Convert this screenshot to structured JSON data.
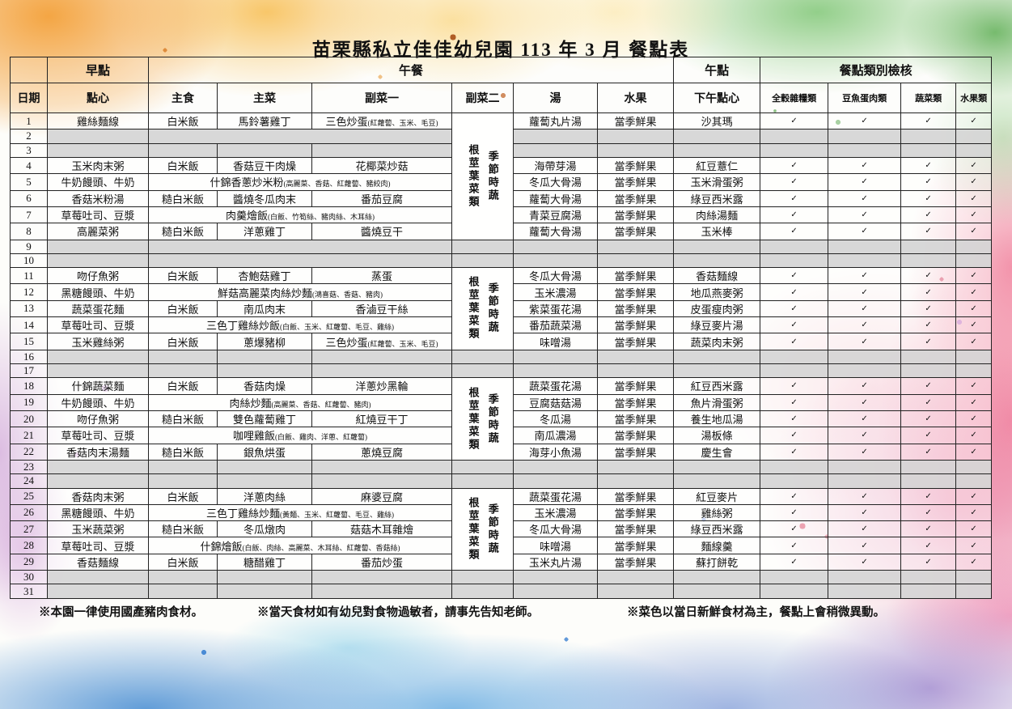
{
  "title": "苗栗縣私立佳佳幼兒園  113 年 3 月 餐點表",
  "header": {
    "groups": [
      {
        "label": "",
        "span": 1
      },
      {
        "label": "早點",
        "span": 1
      },
      {
        "label": "午餐",
        "span": 6
      },
      {
        "label": "午點",
        "span": 1
      },
      {
        "label": "餐點類別檢核",
        "span": 4
      }
    ],
    "columns": [
      "日期",
      "點心",
      "主食",
      "主菜",
      "副菜一",
      "副菜二",
      "湯",
      "水果",
      "下午點心",
      "全穀雜糧類",
      "豆魚蛋肉類",
      "蔬菜類",
      "水果類"
    ]
  },
  "check_mark": "✓",
  "side2_blocks": [
    {
      "start": 1,
      "end": 8,
      "lines": [
        "根莖葉菜類",
        "季節時蔬"
      ]
    },
    {
      "start": 11,
      "end": 15,
      "lines": [
        "根莖葉菜類",
        "季節時蔬"
      ]
    },
    {
      "start": 18,
      "end": 22,
      "lines": [
        "根莖葉菜類",
        "季節時蔬"
      ]
    },
    {
      "start": 25,
      "end": 29,
      "lines": [
        "根莖葉菜類",
        "季節時蔬"
      ]
    }
  ],
  "rows": [
    {
      "day": 1,
      "type": "meal",
      "snack": "雞絲麵線",
      "staple": "白米飯",
      "main": "馬鈴薯雞丁",
      "side1": "三色炒蛋(紅蘿蔔、玉米、毛豆)",
      "soup": "蘿蔔丸片湯",
      "fruit": "當季鮮果",
      "pm": "沙其瑪",
      "checks": [
        true,
        true,
        true,
        true
      ]
    },
    {
      "day": 2,
      "type": "empty",
      "lunch_merged": true
    },
    {
      "day": 3,
      "type": "empty"
    },
    {
      "day": 4,
      "type": "meal",
      "snack": "玉米肉末粥",
      "staple": "白米飯",
      "main": "香菇豆干肉燥",
      "side1": "花椰菜炒菇",
      "soup": "海帶芽湯",
      "fruit": "當季鮮果",
      "pm": "紅豆薏仁",
      "checks": [
        true,
        true,
        true,
        true
      ]
    },
    {
      "day": 5,
      "type": "meal_merged",
      "snack": "牛奶饅頭、牛奶",
      "lunch": "什錦香蔥炒米粉(高麗菜、香菇、紅蘿蔔、豬絞肉)",
      "soup": "冬瓜大骨湯",
      "fruit": "當季鮮果",
      "pm": "玉米滑蛋粥",
      "checks": [
        true,
        true,
        true,
        true
      ]
    },
    {
      "day": 6,
      "type": "meal",
      "snack": "香菇米粉湯",
      "staple": "糙白米飯",
      "main": "醬燒冬瓜肉末",
      "side1": "番茄豆腐",
      "soup": "蘿蔔大骨湯",
      "fruit": "當季鮮果",
      "pm": "綠豆西米露",
      "checks": [
        true,
        true,
        true,
        true
      ]
    },
    {
      "day": 7,
      "type": "meal_merged",
      "snack": "草莓吐司、豆漿",
      "lunch": "肉羹燴飯(白飯、竹筍絲、豬肉絲、木耳絲)",
      "soup": "青菜豆腐湯",
      "fruit": "當季鮮果",
      "pm": "肉絲湯麵",
      "checks": [
        true,
        true,
        true,
        true
      ]
    },
    {
      "day": 8,
      "type": "meal",
      "snack": "高麗菜粥",
      "staple": "糙白米飯",
      "main": "洋蔥雞丁",
      "side1": "醬燒豆干",
      "soup": "蘿蔔大骨湯",
      "fruit": "當季鮮果",
      "pm": "玉米棒",
      "checks": [
        true,
        true,
        true,
        true
      ]
    },
    {
      "day": 9,
      "type": "empty",
      "lunch_merged": true
    },
    {
      "day": 10,
      "type": "empty",
      "lunch_merged": true
    },
    {
      "day": 11,
      "type": "meal",
      "snack": "吻仔魚粥",
      "staple": "白米飯",
      "main": "杏鮑菇雞丁",
      "side1": "蒸蛋",
      "soup": "冬瓜大骨湯",
      "fruit": "當季鮮果",
      "pm": "香菇麵線",
      "checks": [
        true,
        true,
        true,
        true
      ]
    },
    {
      "day": 12,
      "type": "meal_merged",
      "snack": "黑糖饅頭、牛奶",
      "lunch": "鮮菇高麗菜肉絲炒麵(鴻喜菇、香菇、豬肉)",
      "soup": "玉米濃湯",
      "fruit": "當季鮮果",
      "pm": "地瓜燕麥粥",
      "checks": [
        true,
        true,
        true,
        true
      ]
    },
    {
      "day": 13,
      "type": "meal",
      "snack": "蔬菜蛋花麵",
      "staple": "白米飯",
      "main": "南瓜肉末",
      "side1": "香滷豆干絲",
      "soup": "紫菜蛋花湯",
      "fruit": "當季鮮果",
      "pm": "皮蛋瘦肉粥",
      "checks": [
        true,
        true,
        true,
        true
      ]
    },
    {
      "day": 14,
      "type": "meal_merged",
      "snack": "草莓吐司、豆漿",
      "lunch": "三色丁雞絲炒飯(白飯、玉米、紅蘿蔔、毛豆、雞絲)",
      "soup": "番茄蔬菜湯",
      "fruit": "當季鮮果",
      "pm": "綠豆麥片湯",
      "checks": [
        true,
        true,
        true,
        true
      ]
    },
    {
      "day": 15,
      "type": "meal",
      "snack": "玉米雞絲粥",
      "staple": "白米飯",
      "main": "蔥爆豬柳",
      "side1": "三色炒蛋(紅蘿蔔、玉米、毛豆)",
      "soup": "味噌湯",
      "fruit": "當季鮮果",
      "pm": "蔬菜肉末粥",
      "checks": [
        true,
        true,
        true,
        true
      ]
    },
    {
      "day": 16,
      "type": "empty"
    },
    {
      "day": 17,
      "type": "empty"
    },
    {
      "day": 18,
      "type": "meal",
      "snack": "什錦蔬菜麵",
      "staple": "白米飯",
      "main": "香菇肉燥",
      "side1": "洋蔥炒黑輪",
      "soup": "蔬菜蛋花湯",
      "fruit": "當季鮮果",
      "pm": "紅豆西米露",
      "checks": [
        true,
        true,
        true,
        true
      ]
    },
    {
      "day": 19,
      "type": "meal_merged",
      "snack": "牛奶饅頭、牛奶",
      "lunch": "肉絲炒麵(高麗菜、香菇、紅蘿蔔、豬肉)",
      "soup": "豆腐菇菇湯",
      "fruit": "當季鮮果",
      "pm": "魚片滑蛋粥",
      "checks": [
        true,
        true,
        true,
        true
      ]
    },
    {
      "day": 20,
      "type": "meal",
      "snack": "吻仔魚粥",
      "staple": "糙白米飯",
      "main": "雙色蘿蔔雞丁",
      "side1": "紅燒豆干丁",
      "soup": "冬瓜湯",
      "fruit": "當季鮮果",
      "pm": "養生地瓜湯",
      "checks": [
        true,
        true,
        true,
        true
      ]
    },
    {
      "day": 21,
      "type": "meal_merged",
      "snack": "草莓吐司、豆漿",
      "lunch": "咖哩雞飯(白飯、雞肉、洋蔥、紅蘿蔔)",
      "soup": "南瓜濃湯",
      "fruit": "當季鮮果",
      "pm": "湯板條",
      "checks": [
        true,
        true,
        true,
        true
      ]
    },
    {
      "day": 22,
      "type": "meal",
      "snack": "香菇肉末湯麵",
      "staple": "糙白米飯",
      "main": "銀魚烘蛋",
      "side1": "蔥燒豆腐",
      "soup": "海芽小魚湯",
      "fruit": "當季鮮果",
      "pm": "慶生會",
      "checks": [
        true,
        true,
        true,
        true
      ]
    },
    {
      "day": 23,
      "type": "empty"
    },
    {
      "day": 24,
      "type": "empty"
    },
    {
      "day": 25,
      "type": "meal",
      "snack": "香菇肉末粥",
      "staple": "白米飯",
      "main": "洋蔥肉絲",
      "side1": "麻婆豆腐",
      "soup": "蔬菜蛋花湯",
      "fruit": "當季鮮果",
      "pm": "紅豆麥片",
      "checks": [
        true,
        true,
        true,
        true
      ]
    },
    {
      "day": 26,
      "type": "meal_merged",
      "snack": "黑糖饅頭、牛奶",
      "lunch": "三色丁雞絲炒麵(黃麵、玉米、紅蘿蔔、毛豆、雞絲)",
      "soup": "玉米濃湯",
      "fruit": "當季鮮果",
      "pm": "雞絲粥",
      "checks": [
        true,
        true,
        true,
        true
      ]
    },
    {
      "day": 27,
      "type": "meal",
      "snack": "玉米蔬菜粥",
      "staple": "糙白米飯",
      "main": "冬瓜燉肉",
      "side1": "菇菇木耳雜燴",
      "soup": "冬瓜大骨湯",
      "fruit": "當季鮮果",
      "pm": "綠豆西米露",
      "checks": [
        true,
        true,
        true,
        true
      ]
    },
    {
      "day": 28,
      "type": "meal_merged",
      "snack": "草莓吐司、豆漿",
      "lunch": "什錦燴飯(白飯、肉絲、高麗菜、木耳絲、紅蘿蔔、香菇絲)",
      "soup": "味噌湯",
      "fruit": "當季鮮果",
      "pm": "麵線羹",
      "checks": [
        true,
        true,
        true,
        true
      ]
    },
    {
      "day": 29,
      "type": "meal",
      "snack": "香菇麵線",
      "staple": "白米飯",
      "main": "糖醋雞丁",
      "side1": "番茄炒蛋",
      "soup": "玉米丸片湯",
      "fruit": "當季鮮果",
      "pm": "蘇打餅乾",
      "checks": [
        true,
        true,
        true,
        true
      ]
    },
    {
      "day": 30,
      "type": "empty"
    },
    {
      "day": 31,
      "type": "empty"
    }
  ],
  "notes": [
    "※本園一律使用國產豬肉食材。",
    "※當天食材如有幼兒對食物過敏者，請事先告知老師。",
    "※菜色以當日新鮮食材為主，餐點上會稍微異動。"
  ],
  "palette": {
    "orange": "#f39c30",
    "yellow": "#f8d06b",
    "green": "#78c36e",
    "pink": "#ee7896",
    "red": "#d43c5c",
    "purple": "#b06ec3",
    "blue": "#4c8cd2",
    "cyan": "#78c8e6",
    "empty_cell_gray": "#d6d6d6",
    "grid_line": "#222222",
    "text": "#111111"
  }
}
